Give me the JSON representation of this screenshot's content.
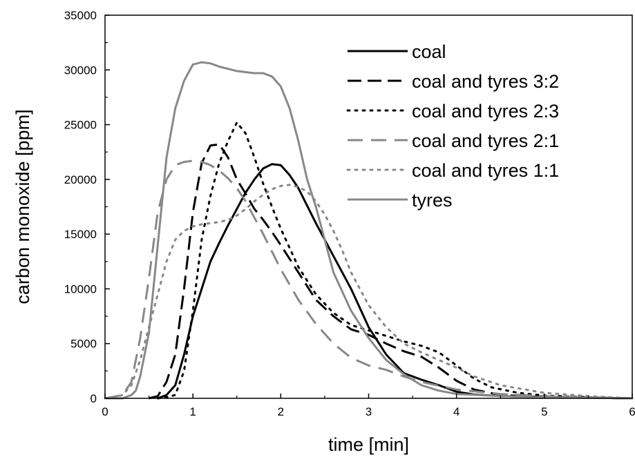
{
  "chart_data": {
    "type": "line",
    "title": "",
    "xlabel": "time [min]",
    "ylabel": "carbon monoxide [ppm]",
    "xlim": [
      0,
      6
    ],
    "ylim": [
      0,
      35000
    ],
    "xticks": [
      0,
      1,
      2,
      3,
      4,
      5,
      6
    ],
    "yticks": [
      0,
      5000,
      10000,
      15000,
      20000,
      25000,
      30000,
      35000
    ],
    "x_tick_labels": [
      "0",
      "1",
      "2",
      "3",
      "4",
      "5",
      "6"
    ],
    "y_tick_labels": [
      "0",
      "5000",
      "10000",
      "15000",
      "20000",
      "25000",
      "30000",
      "35000"
    ],
    "grid": false,
    "legend_position": "top-right",
    "series": [
      {
        "name": "coal",
        "color": "#000000",
        "dash": "solid",
        "x": [
          0.6,
          0.7,
          0.8,
          0.9,
          1.0,
          1.1,
          1.2,
          1.3,
          1.4,
          1.5,
          1.6,
          1.7,
          1.8,
          1.9,
          2.0,
          2.1,
          2.2,
          2.3,
          2.4,
          2.5,
          2.6,
          2.8,
          3.0,
          3.2,
          3.4,
          3.6,
          3.8,
          4.0,
          4.2,
          4.5,
          5.0,
          5.5,
          6.0
        ],
        "y": [
          0,
          300,
          1200,
          4000,
          7500,
          10000,
          12500,
          14200,
          15800,
          17300,
          18800,
          20000,
          21000,
          21400,
          21300,
          20400,
          19200,
          17600,
          16000,
          14500,
          13000,
          10000,
          6500,
          4000,
          2300,
          1700,
          1200,
          600,
          350,
          200,
          120,
          60,
          0
        ]
      },
      {
        "name": "coal and tyres 3:2",
        "color": "#000000",
        "dash": "long-dash",
        "x": [
          0.5,
          0.6,
          0.7,
          0.8,
          0.9,
          1.0,
          1.1,
          1.2,
          1.3,
          1.4,
          1.5,
          1.6,
          1.7,
          1.8,
          1.9,
          2.0,
          2.2,
          2.4,
          2.6,
          2.8,
          3.0,
          3.2,
          3.4,
          3.6,
          3.8,
          4.0,
          4.2,
          4.5,
          5.0,
          5.5,
          6.0
        ],
        "y": [
          0,
          200,
          1500,
          4000,
          10000,
          17000,
          21500,
          23100,
          23200,
          22000,
          20000,
          18700,
          17300,
          16300,
          15200,
          14000,
          11500,
          9000,
          7500,
          6300,
          5800,
          5000,
          4300,
          3800,
          2800,
          1600,
          800,
          300,
          120,
          60,
          0
        ]
      },
      {
        "name": "coal and tyres 2:3",
        "color": "#000000",
        "dash": "dot",
        "x": [
          0.6,
          0.7,
          0.8,
          0.9,
          1.0,
          1.1,
          1.2,
          1.3,
          1.4,
          1.5,
          1.6,
          1.7,
          1.8,
          1.9,
          2.0,
          2.2,
          2.4,
          2.6,
          2.8,
          3.0,
          3.2,
          3.4,
          3.6,
          3.8,
          4.0,
          4.2,
          4.4,
          4.7,
          5.0,
          5.5,
          6.0
        ],
        "y": [
          0,
          100,
          300,
          2500,
          8000,
          14500,
          18500,
          21500,
          23500,
          25200,
          24200,
          22000,
          19600,
          17500,
          15500,
          12000,
          9500,
          7800,
          6700,
          6200,
          5700,
          5200,
          4800,
          4200,
          3000,
          1800,
          1000,
          500,
          250,
          100,
          0
        ]
      },
      {
        "name": "coal and tyres 2:1",
        "color": "#888888",
        "dash": "dash",
        "x": [
          0.0,
          0.2,
          0.3,
          0.4,
          0.5,
          0.6,
          0.7,
          0.8,
          0.9,
          1.0,
          1.1,
          1.2,
          1.3,
          1.4,
          1.5,
          1.6,
          1.8,
          2.0,
          2.2,
          2.4,
          2.6,
          2.8,
          3.0,
          3.2,
          3.4,
          3.6,
          4.0,
          4.5,
          5.0,
          5.5,
          6.0
        ],
        "y": [
          0,
          300,
          1500,
          5500,
          11000,
          17000,
          20000,
          21300,
          21600,
          21700,
          21600,
          21300,
          20800,
          20100,
          19200,
          18000,
          15000,
          11800,
          9000,
          6800,
          5000,
          3700,
          3000,
          2600,
          2000,
          1500,
          800,
          400,
          200,
          80,
          0
        ]
      },
      {
        "name": "coal and tyres 1:1",
        "color": "#888888",
        "dash": "dot",
        "x": [
          0.0,
          0.1,
          0.2,
          0.3,
          0.4,
          0.5,
          0.6,
          0.7,
          0.8,
          0.9,
          1.0,
          1.1,
          1.2,
          1.3,
          1.4,
          1.5,
          1.6,
          1.7,
          1.8,
          1.9,
          2.0,
          2.1,
          2.2,
          2.3,
          2.4,
          2.5,
          2.6,
          2.7,
          2.8,
          3.0,
          3.2,
          3.4,
          3.6,
          3.8,
          4.0,
          4.2,
          4.5,
          5.0,
          5.5,
          6.0
        ],
        "y": [
          0,
          100,
          300,
          1200,
          3500,
          6500,
          9500,
          12500,
          14500,
          15300,
          15700,
          15900,
          16000,
          16100,
          16300,
          16700,
          17300,
          18000,
          18600,
          19100,
          19400,
          19500,
          19300,
          18900,
          18000,
          16800,
          15300,
          13500,
          11500,
          8500,
          6500,
          5000,
          4200,
          3500,
          2800,
          2000,
          1200,
          500,
          200,
          0
        ]
      },
      {
        "name": "tyres",
        "color": "#888888",
        "dash": "solid",
        "x": [
          0.0,
          0.2,
          0.3,
          0.35,
          0.4,
          0.5,
          0.6,
          0.7,
          0.8,
          0.9,
          1.0,
          1.1,
          1.2,
          1.3,
          1.4,
          1.5,
          1.6,
          1.7,
          1.8,
          1.9,
          2.0,
          2.1,
          2.2,
          2.3,
          2.4,
          2.5,
          2.6,
          2.8,
          3.0,
          3.2,
          3.4,
          3.6,
          3.8,
          4.0,
          4.5,
          5.0,
          5.5,
          6.0
        ],
        "y": [
          0,
          0,
          300,
          700,
          2000,
          6000,
          14000,
          22000,
          26500,
          29000,
          30500,
          30700,
          30600,
          30300,
          30100,
          29900,
          29800,
          29700,
          29700,
          29400,
          28500,
          26500,
          23500,
          20000,
          17500,
          14500,
          11500,
          8000,
          5500,
          3500,
          2200,
          1200,
          700,
          400,
          200,
          100,
          50,
          0
        ]
      }
    ]
  }
}
